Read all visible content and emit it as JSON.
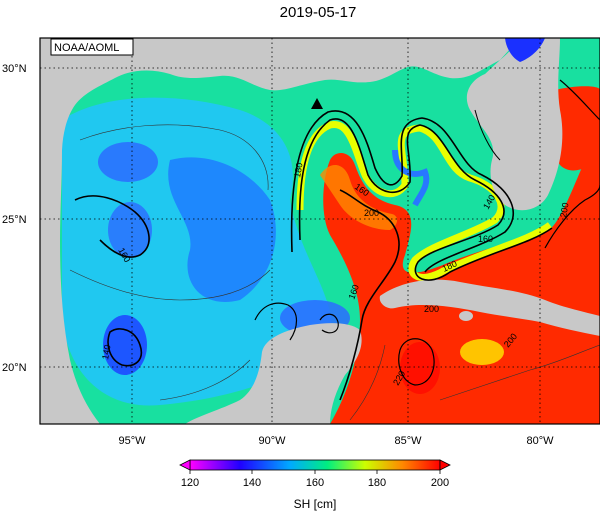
{
  "title": "2019-05-17",
  "credit": "NOAA/AOML",
  "lat_labels": [
    "30°N",
    "25°N",
    "20°N"
  ],
  "lon_labels": [
    "95°W",
    "90°W",
    "85°W",
    "80°W"
  ],
  "contour_labels": [
    "180",
    "160",
    "200",
    "160",
    "180",
    "140",
    "160",
    "200",
    "160",
    "140",
    "200",
    "220",
    "200"
  ],
  "colorbar": {
    "ticks": [
      "120",
      "140",
      "160",
      "180",
      "200"
    ],
    "label": "SH [cm]",
    "colors": [
      "#ff00ff",
      "#0000ff",
      "#00aaff",
      "#00ee80",
      "#eeff00",
      "#ff8800",
      "#ff0000"
    ]
  },
  "marker": "triangle",
  "colors": {
    "land": "#c8c8c8",
    "frame": "#000000",
    "low": "#0000ff",
    "mid": "#00ee80",
    "high": "#ff2000"
  }
}
